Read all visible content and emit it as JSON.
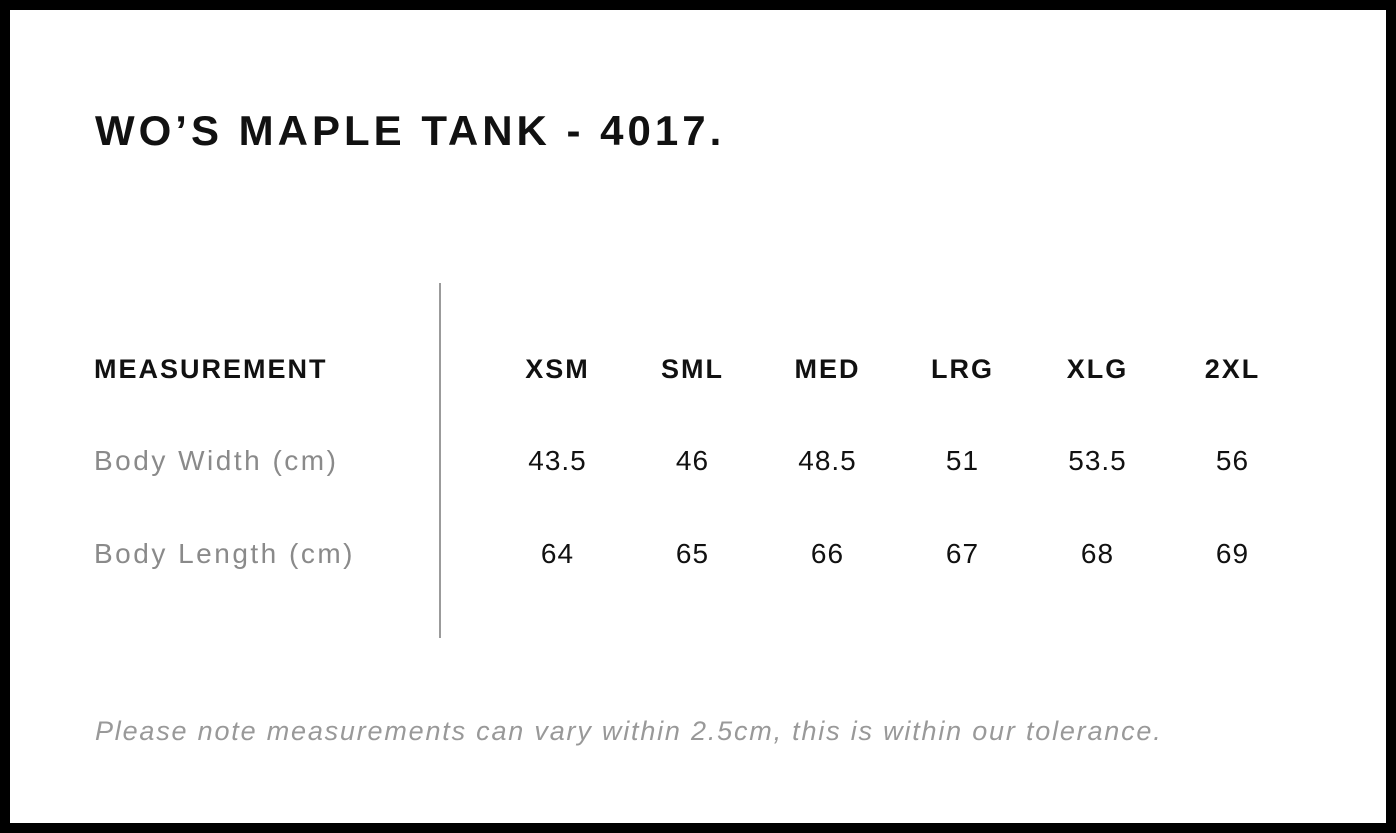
{
  "chart_data": {
    "type": "table",
    "title": "WO’S MAPLE TANK - 4017.",
    "columns": [
      "MEASUREMENT",
      "XSM",
      "SML",
      "MED",
      "LRG",
      "XLG",
      "2XL"
    ],
    "rows": [
      [
        "Body Width (cm)",
        43.5,
        46,
        48.5,
        51,
        53.5,
        56
      ],
      [
        "Body Length (cm)",
        64,
        65,
        66,
        67,
        68,
        69
      ]
    ],
    "note": "Please note measurements can vary within 2.5cm, this is within our tolerance."
  },
  "colors": {
    "text_primary": "#111111",
    "text_secondary": "#8a8a8a",
    "note": "#999999",
    "divider": "#9b9b9b",
    "border": "#000000",
    "background": "#ffffff"
  }
}
